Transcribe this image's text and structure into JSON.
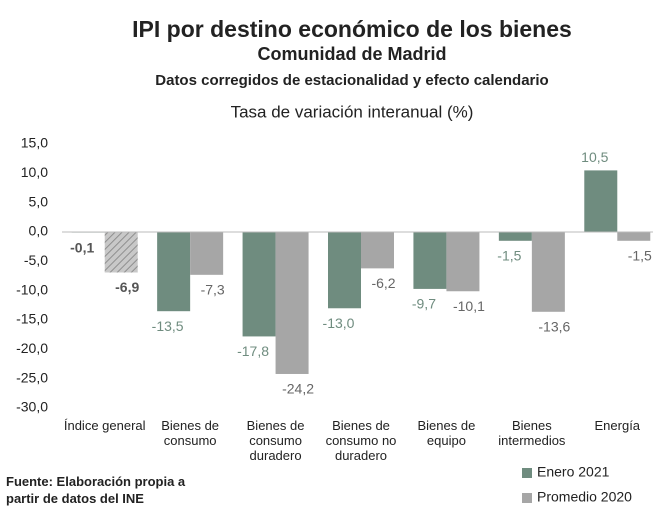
{
  "chart_data": {
    "type": "bar",
    "title": "IPI por destino económico de los bienes",
    "subtitle": "Comunidad de Madrid",
    "subtitle2": "Datos corregidos de estacionalidad y efecto calendario",
    "y_label": "Tasa de variación interanual (%)",
    "source": "Fuente: Elaboración propia a partir de datos del INE",
    "categories": [
      "Índice general",
      "Bienes de consumo",
      "Bienes de consumo duradero",
      "Bienes de consumo no duradero",
      "Bienes de equipo",
      "Bienes intermedios",
      "Energía"
    ],
    "series": [
      {
        "name": "Enero 2021",
        "color": "#6f8c7f",
        "values": [
          -0.1,
          -13.5,
          -17.8,
          -13.0,
          -9.7,
          -1.5,
          10.5
        ],
        "value_labels": [
          "-0,1",
          "-13,5",
          "-17,8",
          "-13,0",
          "-9,7",
          "-1,5",
          "10,5"
        ]
      },
      {
        "name": "Promedio 2020",
        "color": "#a6a6a6",
        "values": [
          -6.9,
          -7.3,
          -24.2,
          -6.2,
          -10.1,
          -13.6,
          -1.5
        ],
        "value_labels": [
          "-6,9",
          "-7,3",
          "-24,2",
          "-6,2",
          "-10,1",
          "-13,6",
          "-1,5"
        ]
      }
    ],
    "highlight_category": 0,
    "ylim": [
      -30,
      15
    ],
    "yticks": [
      {
        "value": -30,
        "label": "-30,0"
      },
      {
        "value": -25,
        "label": "-25,0"
      },
      {
        "value": -20,
        "label": "-20,0"
      },
      {
        "value": -15,
        "label": "-15,0"
      },
      {
        "value": -10,
        "label": "-10,0"
      },
      {
        "value": -5,
        "label": "-5,0"
      },
      {
        "value": 0,
        "label": "0,0"
      },
      {
        "value": 5,
        "label": "5,0"
      },
      {
        "value": 10,
        "label": "10,0"
      },
      {
        "value": 15,
        "label": "15,0"
      }
    ],
    "grid": false,
    "legend": "bottom-right"
  }
}
